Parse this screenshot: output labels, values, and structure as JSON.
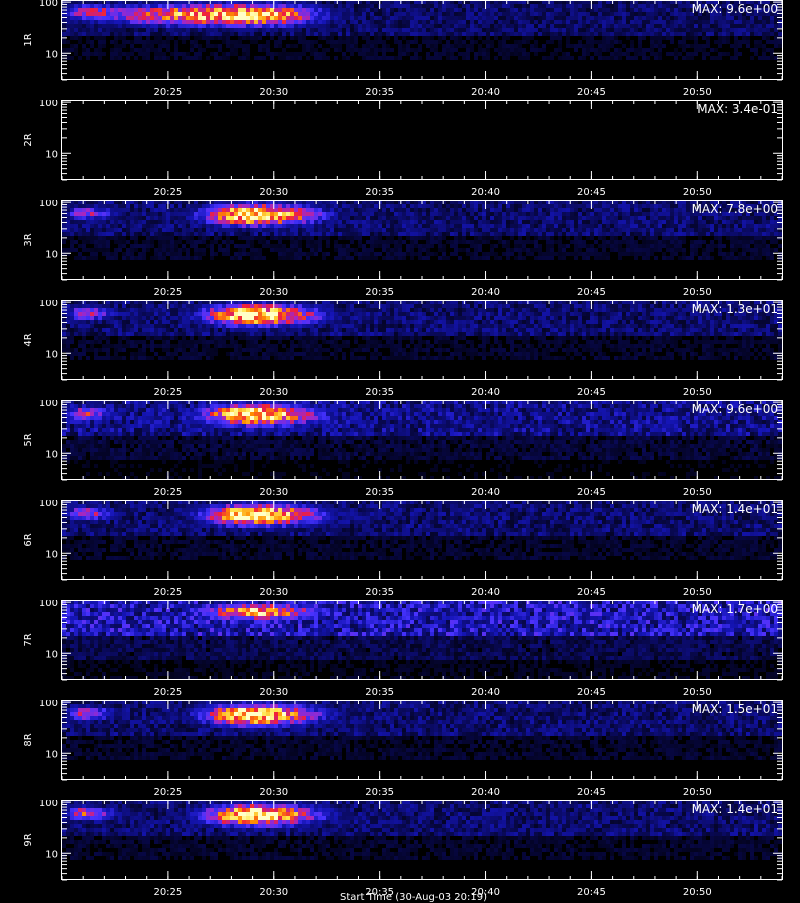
{
  "colormap": [
    "#000000",
    "#0a0a60",
    "#1414b4",
    "#4632ff",
    "#a028c8",
    "#f01e3c",
    "#ff8c00",
    "#ffe650",
    "#ffffc8"
  ],
  "chart_data": [
    {
      "type": "heatmap",
      "panel": "1R",
      "max_label": "MAX: 9.6e+00",
      "max_value": 9.6,
      "x_ticks": [
        "20:25",
        "20:30",
        "20:35",
        "20:40",
        "20:45",
        "20:50"
      ],
      "x_range": [
        "20:20",
        "20:54"
      ],
      "y_ticks": [
        "100",
        "10"
      ],
      "y_scale": "log",
      "y_range": [
        3,
        110
      ],
      "features": [
        {
          "t_start": "20:20",
          "t_end": "20:33",
          "center": "20:29",
          "band": [
            30,
            105
          ],
          "relative_peak": 0.95
        },
        {
          "t_start": "20:20",
          "t_end": "20:26",
          "center": "20:21",
          "band": [
            40,
            100
          ],
          "relative_peak": 0.55
        }
      ],
      "background_level": 0.18
    },
    {
      "type": "heatmap",
      "panel": "2R",
      "max_label": "MAX: 3.4e-01",
      "max_value": 0.34,
      "x_ticks": [
        "20:25",
        "20:30",
        "20:35",
        "20:40",
        "20:45",
        "20:50"
      ],
      "x_range": [
        "20:20",
        "20:54"
      ],
      "y_ticks": [
        "100",
        "10"
      ],
      "y_scale": "log",
      "y_range": [
        3,
        110
      ],
      "features": [],
      "background_level": 0.0
    },
    {
      "type": "heatmap",
      "panel": "3R",
      "max_label": "MAX: 7.8e+00",
      "max_value": 7.8,
      "x_ticks": [
        "20:25",
        "20:30",
        "20:35",
        "20:40",
        "20:45",
        "20:50"
      ],
      "x_range": [
        "20:20",
        "20:54"
      ],
      "y_ticks": [
        "100",
        "10"
      ],
      "y_scale": "log",
      "y_range": [
        3,
        110
      ],
      "features": [
        {
          "t_start": "20:26",
          "t_end": "20:33",
          "center": "20:29",
          "band": [
            30,
            105
          ],
          "relative_peak": 1.0
        },
        {
          "t_start": "20:20",
          "t_end": "20:23",
          "center": "20:21",
          "band": [
            40,
            90
          ],
          "relative_peak": 0.5
        }
      ],
      "background_level": 0.2
    },
    {
      "type": "heatmap",
      "panel": "4R",
      "max_label": "MAX: 1.3e+01",
      "max_value": 13,
      "x_ticks": [
        "20:25",
        "20:30",
        "20:35",
        "20:40",
        "20:45",
        "20:50"
      ],
      "x_range": [
        "20:20",
        "20:54"
      ],
      "y_ticks": [
        "100",
        "10"
      ],
      "y_scale": "log",
      "y_range": [
        3,
        110
      ],
      "features": [
        {
          "t_start": "20:26",
          "t_end": "20:33",
          "center": "20:29",
          "band": [
            30,
            105
          ],
          "relative_peak": 1.0
        },
        {
          "t_start": "20:20",
          "t_end": "20:23",
          "center": "20:21",
          "band": [
            40,
            90
          ],
          "relative_peak": 0.55
        }
      ],
      "background_level": 0.2
    },
    {
      "type": "heatmap",
      "panel": "5R",
      "max_label": "MAX: 9.6e+00",
      "max_value": 9.6,
      "x_ticks": [
        "20:25",
        "20:30",
        "20:35",
        "20:40",
        "20:45",
        "20:50"
      ],
      "x_range": [
        "20:20",
        "20:54"
      ],
      "y_ticks": [
        "100",
        "10"
      ],
      "y_scale": "log",
      "y_range": [
        3,
        110
      ],
      "features": [
        {
          "t_start": "20:26",
          "t_end": "20:33",
          "center": "20:29",
          "band": [
            30,
            105
          ],
          "relative_peak": 1.0
        },
        {
          "t_start": "20:20",
          "t_end": "20:23",
          "center": "20:21",
          "band": [
            40,
            90
          ],
          "relative_peak": 0.55
        }
      ],
      "background_level": 0.25
    },
    {
      "type": "heatmap",
      "panel": "6R",
      "max_label": "MAX: 1.4e+01",
      "max_value": 14,
      "x_ticks": [
        "20:25",
        "20:30",
        "20:35",
        "20:40",
        "20:45",
        "20:50"
      ],
      "x_range": [
        "20:20",
        "20:54"
      ],
      "y_ticks": [
        "100",
        "10"
      ],
      "y_scale": "log",
      "y_range": [
        3,
        110
      ],
      "features": [
        {
          "t_start": "20:26",
          "t_end": "20:33",
          "center": "20:29",
          "band": [
            30,
            105
          ],
          "relative_peak": 1.0
        },
        {
          "t_start": "20:20",
          "t_end": "20:23",
          "center": "20:21",
          "band": [
            40,
            90
          ],
          "relative_peak": 0.55
        }
      ],
      "background_level": 0.2
    },
    {
      "type": "heatmap",
      "panel": "7R",
      "max_label": "MAX: 1.7e+00",
      "max_value": 1.7,
      "x_ticks": [
        "20:25",
        "20:30",
        "20:35",
        "20:40",
        "20:45",
        "20:50"
      ],
      "x_range": [
        "20:20",
        "20:54"
      ],
      "y_ticks": [
        "100",
        "10"
      ],
      "y_scale": "log",
      "y_range": [
        3,
        110
      ],
      "features": [
        {
          "t_start": "20:26",
          "t_end": "20:33",
          "center": "20:29",
          "band": [
            40,
            105
          ],
          "relative_peak": 0.85
        }
      ],
      "background_level": 0.35
    },
    {
      "type": "heatmap",
      "panel": "8R",
      "max_label": "MAX: 1.5e+01",
      "max_value": 15,
      "x_ticks": [
        "20:25",
        "20:30",
        "20:35",
        "20:40",
        "20:45",
        "20:50"
      ],
      "x_range": [
        "20:20",
        "20:54"
      ],
      "y_ticks": [
        "100",
        "10"
      ],
      "y_scale": "log",
      "y_range": [
        3,
        110
      ],
      "features": [
        {
          "t_start": "20:26",
          "t_end": "20:33",
          "center": "20:29",
          "band": [
            30,
            105
          ],
          "relative_peak": 1.0
        },
        {
          "t_start": "20:20",
          "t_end": "20:23",
          "center": "20:21",
          "band": [
            40,
            90
          ],
          "relative_peak": 0.55
        }
      ],
      "background_level": 0.2
    },
    {
      "type": "heatmap",
      "panel": "9R",
      "max_label": "MAX: 1.4e+01",
      "max_value": 14,
      "x_ticks": [
        "20:25",
        "20:30",
        "20:35",
        "20:40",
        "20:45",
        "20:50"
      ],
      "x_range": [
        "20:20",
        "20:54"
      ],
      "y_ticks": [
        "100",
        "10"
      ],
      "y_scale": "log",
      "y_range": [
        3,
        110
      ],
      "features": [
        {
          "t_start": "20:26",
          "t_end": "20:33",
          "center": "20:29",
          "band": [
            30,
            105
          ],
          "relative_peak": 1.0
        },
        {
          "t_start": "20:20",
          "t_end": "20:23",
          "center": "20:21",
          "band": [
            40,
            90
          ],
          "relative_peak": 0.6
        }
      ],
      "background_level": 0.2
    }
  ],
  "bottom_caption": "Start Time (30-Aug-03 20:19)"
}
